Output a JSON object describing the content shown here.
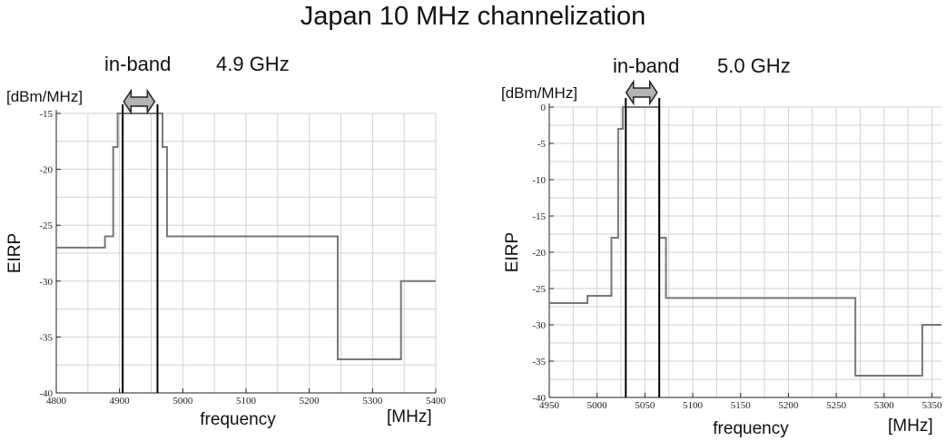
{
  "title": "Japan 10 MHz channelization",
  "chart_data": [
    {
      "type": "line",
      "band_label": "in-band",
      "band_freq": "4.9 GHz",
      "unit_label": "[dBm/MHz]",
      "ylabel": "EIRP",
      "xlabel": "frequency",
      "xunit": "[MHz]",
      "xlim": [
        4800,
        5400
      ],
      "ylim": [
        -40,
        -15
      ],
      "xticks": [
        4800,
        4900,
        5000,
        5100,
        5200,
        5300,
        5400
      ],
      "yticks": [
        -15,
        -20,
        -25,
        -30,
        -35,
        -40
      ],
      "grid": true,
      "inband_lines": [
        4905,
        4960
      ],
      "series": [
        {
          "x": [
            4800,
            4877,
            4877,
            4890,
            4890,
            4897,
            4897,
            4905,
            4905,
            4960,
            4960,
            4968,
            4968,
            4975,
            4975,
            5245,
            5245,
            5345,
            5345,
            5400
          ],
          "y": [
            -27,
            -27,
            -26,
            -26,
            -18,
            -18,
            -15,
            -15,
            -15,
            -15,
            -15,
            -15,
            -18,
            -18,
            -26,
            -26,
            -37,
            -37,
            -30,
            -30
          ]
        }
      ]
    },
    {
      "type": "line",
      "band_label": "in-band",
      "band_freq": "5.0 GHz",
      "unit_label": "[dBm/MHz]",
      "ylabel": "EIRP",
      "xlabel": "frequency",
      "xunit": "[MHz]",
      "xlim": [
        4950,
        5360
      ],
      "ylim": [
        -40,
        0
      ],
      "xticks": [
        4950,
        5000,
        5050,
        5100,
        5150,
        5200,
        5250,
        5300,
        5350
      ],
      "yticks": [
        0,
        -5,
        -10,
        -15,
        -20,
        -25,
        -30,
        -35,
        -40
      ],
      "grid": true,
      "inband_lines": [
        5030,
        5065
      ],
      "series": [
        {
          "x": [
            4950,
            4990,
            4990,
            5015,
            5015,
            5022,
            5022,
            5027,
            5027,
            5030,
            5030,
            5065,
            5065,
            5072,
            5072,
            5270,
            5270,
            5340,
            5340,
            5360
          ],
          "y": [
            -27,
            -27,
            -26,
            -26,
            -18,
            -18,
            -3,
            -3,
            0,
            0,
            0,
            0,
            -18,
            -18,
            -26.3,
            -26.3,
            -37,
            -37,
            -30,
            -30
          ]
        }
      ]
    }
  ]
}
